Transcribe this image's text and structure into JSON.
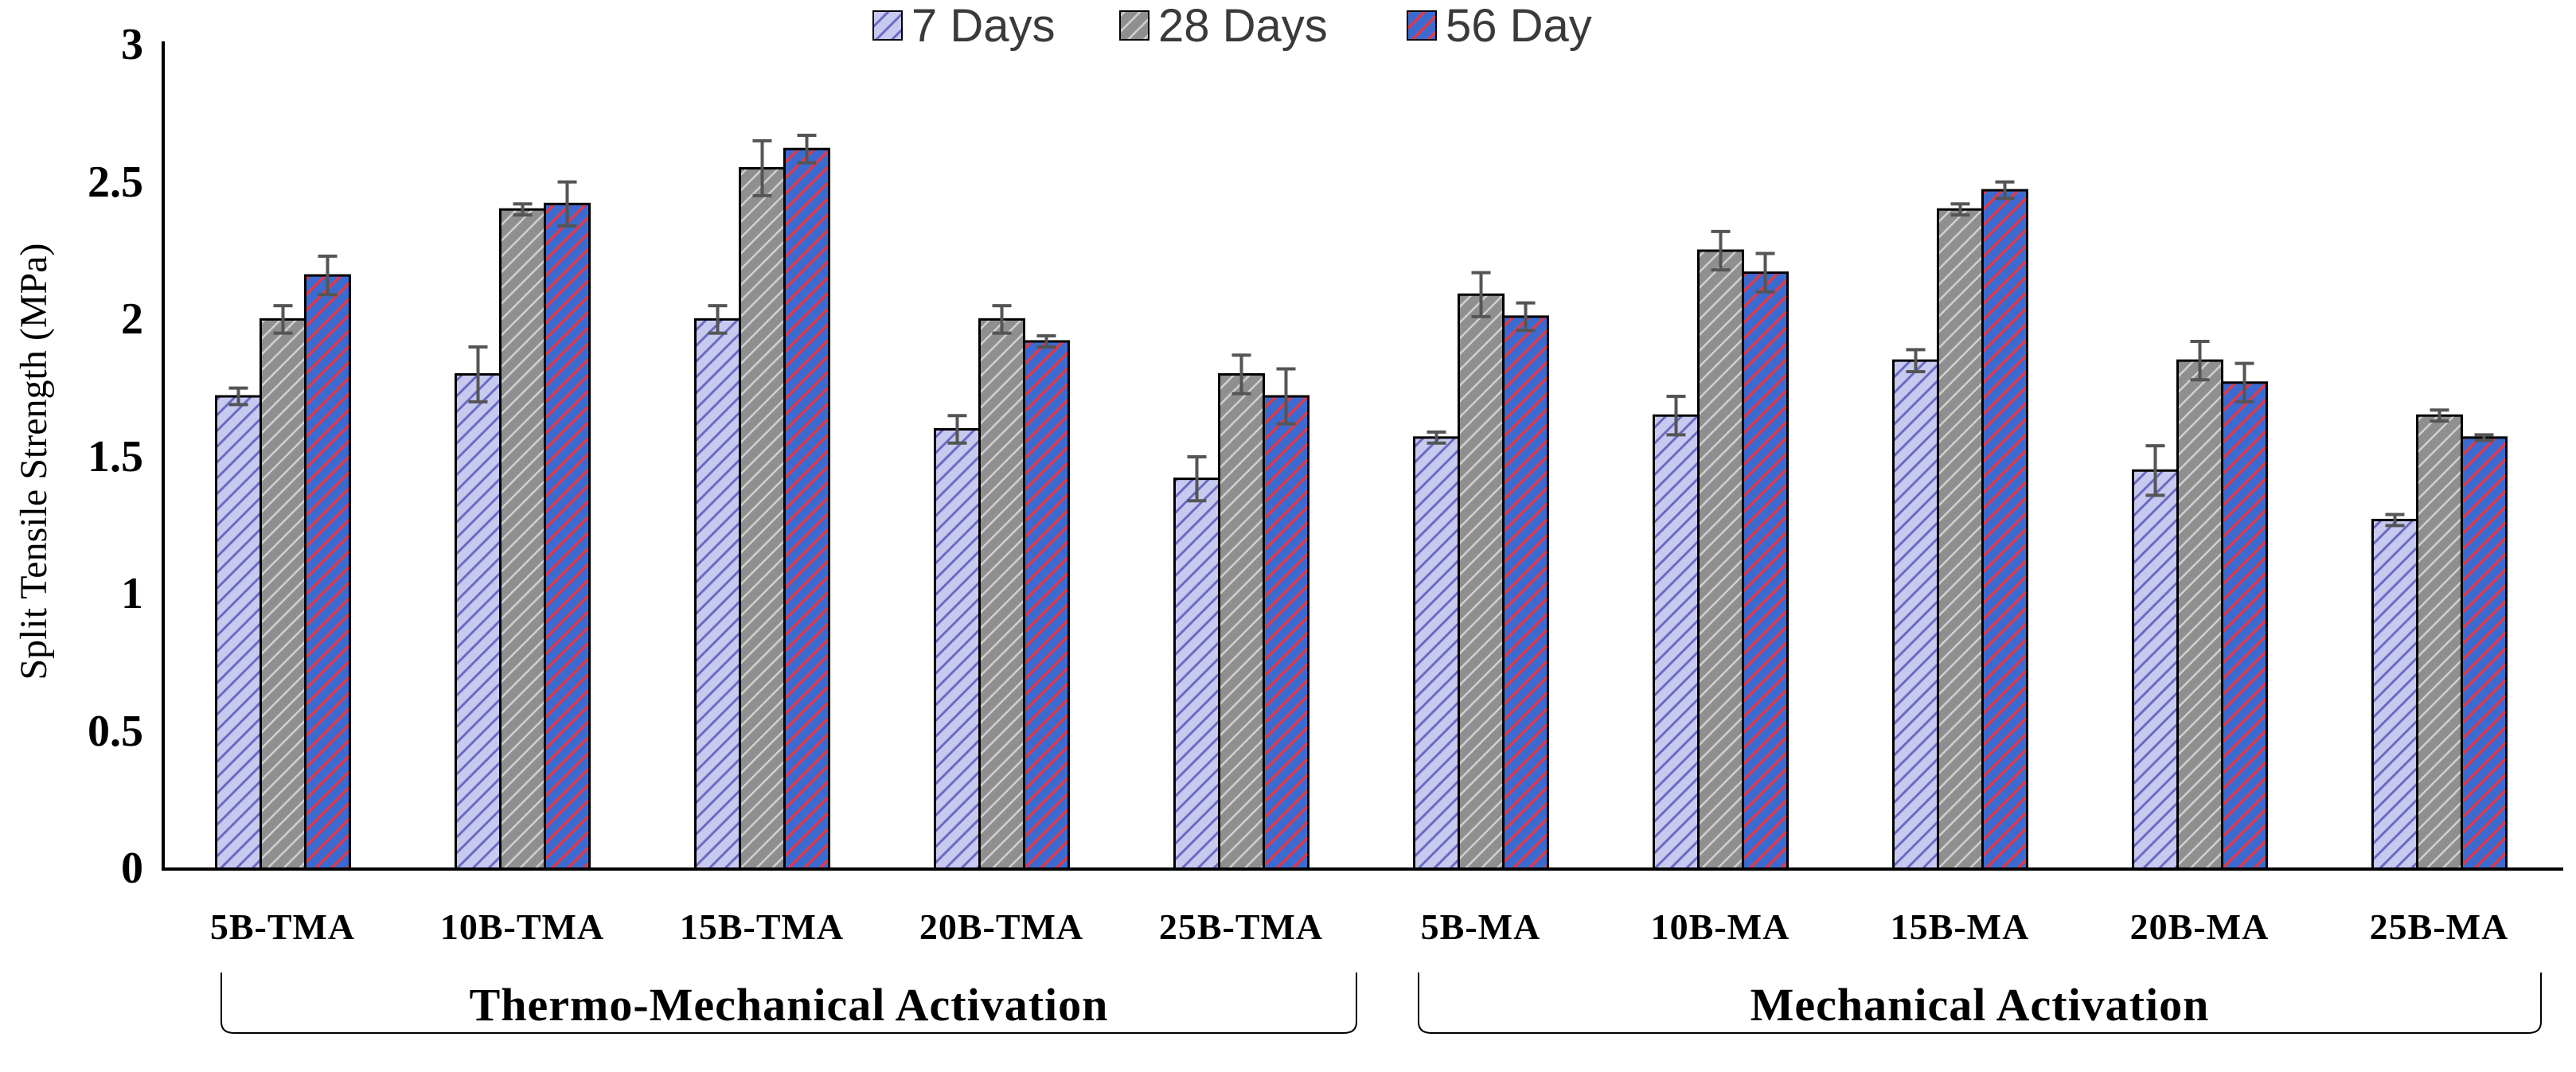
{
  "chart_data": {
    "type": "bar",
    "title": "",
    "xlabel": "",
    "ylabel": "Split Tensile Strength (MPa)",
    "ylim": [
      0,
      3
    ],
    "yticks": [
      "0",
      "0.5",
      "1",
      "1.5",
      "2",
      "2.5",
      "3"
    ],
    "grid": false,
    "legend_position": "top-center",
    "categories": [
      "5B-TMA",
      "10B-TMA",
      "15B-TMA",
      "20B-TMA",
      "25B-TMA",
      "5B-MA",
      "10B-MA",
      "15B-MA",
      "20B-MA",
      "25B-MA"
    ],
    "series": [
      {
        "name": "7 Days",
        "values": [
          1.72,
          1.8,
          2.0,
          1.6,
          1.42,
          1.57,
          1.65,
          1.85,
          1.45,
          1.27
        ],
        "errors": [
          0.03,
          0.1,
          0.05,
          0.05,
          0.08,
          0.02,
          0.07,
          0.04,
          0.09,
          0.02
        ]
      },
      {
        "name": "28 Days",
        "values": [
          2.0,
          2.4,
          2.55,
          2.0,
          1.8,
          2.09,
          2.25,
          2.4,
          1.85,
          1.65
        ],
        "errors": [
          0.05,
          0.02,
          0.1,
          0.05,
          0.07,
          0.08,
          0.07,
          0.02,
          0.07,
          0.02
        ]
      },
      {
        "name": "56 Day",
        "values": [
          2.16,
          2.42,
          2.62,
          1.92,
          1.72,
          2.01,
          2.17,
          2.47,
          1.77,
          1.57
        ],
        "errors": [
          0.07,
          0.08,
          0.05,
          0.02,
          0.1,
          0.05,
          0.07,
          0.03,
          0.07,
          0.01
        ]
      }
    ],
    "groups": [
      {
        "label": "Thermo-Mechanical Activation",
        "from": 0,
        "to": 4
      },
      {
        "label": "Mechanical Activation",
        "from": 5,
        "to": 9
      }
    ],
    "colors": {
      "series": [
        "#c7c9ee",
        "#9a9a9a",
        "#3b6bd0"
      ],
      "hatch": [
        "#6b6bc4",
        "#ffffff",
        "#e0394a"
      ],
      "axis": "#000000",
      "errorbar": "#555555"
    }
  }
}
